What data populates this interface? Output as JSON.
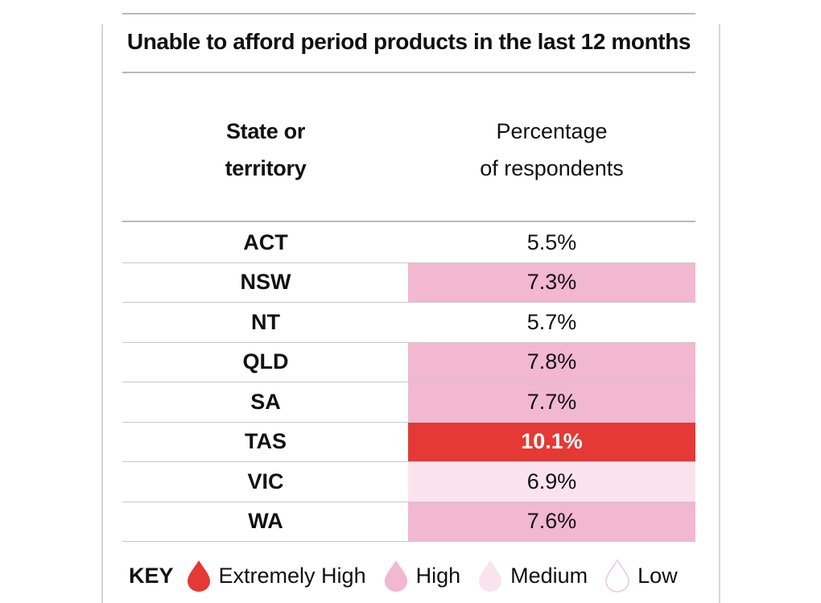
{
  "chart_data": {
    "type": "table",
    "title": "Unable to afford period products in the last 12 months",
    "columns": [
      "State or territory",
      "Percentage of respondents"
    ],
    "header_state_lines": [
      "State or",
      "territory"
    ],
    "header_pct_lines": [
      "Percentage",
      "of respondents"
    ],
    "rows": [
      {
        "state": "ACT",
        "value": "5.5%",
        "level": "Low"
      },
      {
        "state": "NSW",
        "value": "7.3%",
        "level": "High"
      },
      {
        "state": "NT",
        "value": "5.7%",
        "level": "Low"
      },
      {
        "state": "QLD",
        "value": "7.8%",
        "level": "High"
      },
      {
        "state": "SA",
        "value": "7.7%",
        "level": "High"
      },
      {
        "state": "TAS",
        "value": "10.1%",
        "level": "Extremely High"
      },
      {
        "state": "VIC",
        "value": "6.9%",
        "level": "Medium"
      },
      {
        "state": "WA",
        "value": "7.6%",
        "level": "High"
      }
    ],
    "key_label": "KEY",
    "legend": [
      {
        "label": "Extremely High",
        "color": "#e53935",
        "icon": "drop-icon"
      },
      {
        "label": "High",
        "color": "#f2b7d1",
        "icon": "drop-icon"
      },
      {
        "label": "Medium",
        "color": "#fbe3ee",
        "icon": "drop-icon"
      },
      {
        "label": "Low",
        "color": "#ffffff",
        "icon": "drop-outline-icon"
      }
    ]
  }
}
